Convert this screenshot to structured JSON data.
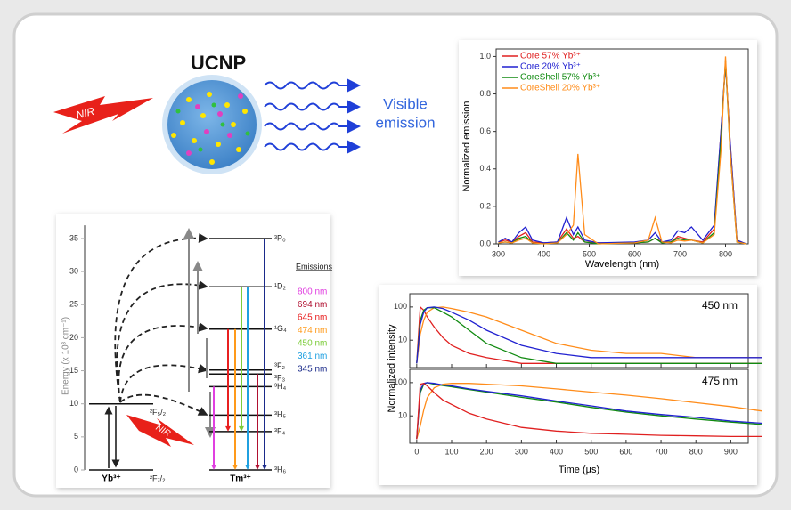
{
  "illustration": {
    "title": "UCNP",
    "excitation": "NIR",
    "emission_lines": [
      "Visible",
      "emission"
    ]
  },
  "chart_data": [
    {
      "type": "levels",
      "ylabel": "Energy (x 10³ cm⁻¹)",
      "ylim": [
        0,
        37
      ],
      "yticks": [
        0,
        5,
        10,
        15,
        20,
        25,
        30,
        35
      ],
      "excitation": "NIR",
      "yb": {
        "label": "Yb³⁺",
        "levels": [
          {
            "label": "²F₅/₂",
            "energy": 10
          },
          {
            "label": "²F₇/₂",
            "energy": 0
          }
        ]
      },
      "tm": {
        "label": "Tm³⁺",
        "levels": [
          {
            "label": "³P₀",
            "energy": 35
          },
          {
            "label": "¹D₂",
            "energy": 27.7
          },
          {
            "label": "¹G₄",
            "energy": 21.3
          },
          {
            "label": "³F₂",
            "energy": 15.1
          },
          {
            "label": "³F₃",
            "energy": 14.5
          },
          {
            "label": "³H₄",
            "energy": 12.6
          },
          {
            "label": "³H₅",
            "energy": 8.3
          },
          {
            "label": "³F₄",
            "energy": 5.8
          },
          {
            "label": "³H₆",
            "energy": 0
          }
        ]
      },
      "legend_title": "Emissions",
      "emissions": [
        {
          "label": "800 nm",
          "color": "#e040e0"
        },
        {
          "label": "694 nm",
          "color": "#b01030"
        },
        {
          "label": "645 nm",
          "color": "#e82020"
        },
        {
          "label": "474 nm",
          "color": "#ff9a1a"
        },
        {
          "label": "450 nm",
          "color": "#7ccc3a"
        },
        {
          "label": "361 nm",
          "color": "#20a0e0"
        },
        {
          "label": "345 nm",
          "color": "#1a2a8a"
        }
      ]
    },
    {
      "type": "line",
      "xlabel": "Wavelength (nm)",
      "ylabel": "Normalized emission",
      "xlim": [
        295,
        850
      ],
      "ylim": [
        0,
        1.04
      ],
      "xticks": [
        300,
        400,
        500,
        600,
        700,
        800
      ],
      "yticks": [
        {
          "value": 0,
          "label": "0.0"
        },
        0.2,
        0.4,
        0.6,
        0.8,
        {
          "value": 1,
          "label": "1.0"
        }
      ],
      "legend": "upper left",
      "x": [
        300,
        315,
        330,
        345,
        360,
        375,
        400,
        430,
        450,
        465,
        475,
        490,
        520,
        600,
        630,
        645,
        660,
        680,
        695,
        710,
        725,
        750,
        775,
        790,
        800,
        810,
        825,
        845
      ],
      "series": [
        {
          "name": "Core 57% Yb³⁺",
          "color": "#e02020",
          "values": [
            0.01,
            0.02,
            0.01,
            0.04,
            0.06,
            0.01,
            0.005,
            0.01,
            0.08,
            0.03,
            0.04,
            0.01,
            0.005,
            0.005,
            0.01,
            0.03,
            0.01,
            0.01,
            0.04,
            0.03,
            0.02,
            0.01,
            0.08,
            0.6,
            0.97,
            0.55,
            0.02,
            0
          ]
        },
        {
          "name": "Core 20% Yb³⁺",
          "color": "#2020d0",
          "values": [
            0.01,
            0.03,
            0.01,
            0.06,
            0.09,
            0.02,
            0.005,
            0.01,
            0.14,
            0.05,
            0.09,
            0.02,
            0.005,
            0.01,
            0.02,
            0.06,
            0.01,
            0.02,
            0.07,
            0.06,
            0.09,
            0.02,
            0.1,
            0.6,
            0.96,
            0.55,
            0.02,
            0
          ]
        },
        {
          "name": "CoreShell 57% Yb³⁺",
          "color": "#108a10",
          "values": [
            0.005,
            0.01,
            0.005,
            0.03,
            0.04,
            0.005,
            0,
            0.005,
            0.06,
            0.02,
            0.06,
            0.01,
            0,
            0.005,
            0.01,
            0.03,
            0.005,
            0.01,
            0.03,
            0.02,
            0.02,
            0.005,
            0.06,
            0.55,
            0.98,
            0.5,
            0.01,
            0
          ]
        },
        {
          "name": "CoreShell 20% Yb³⁺",
          "color": "#ff8c1a",
          "values": [
            0.005,
            0.01,
            0.005,
            0.02,
            0.03,
            0.005,
            0,
            0.005,
            0.05,
            0.1,
            0.48,
            0.05,
            0,
            0.005,
            0.02,
            0.14,
            0.01,
            0.005,
            0.02,
            0.015,
            0.02,
            0.005,
            0.05,
            0.5,
            1,
            0.5,
            0.01,
            0
          ]
        }
      ]
    },
    {
      "type": "decay",
      "xlabel": "Time (µs)",
      "ylabel": "Normalized intensity",
      "xlim": [
        -20,
        950
      ],
      "ylim": [
        1.5,
        250
      ],
      "log_y": true,
      "xticks": [
        0,
        100,
        200,
        300,
        400,
        500,
        600,
        700,
        800,
        900
      ],
      "yticks": [
        10,
        100
      ],
      "x": [
        0,
        10,
        20,
        30,
        50,
        75,
        100,
        150,
        200,
        300,
        400,
        500,
        600,
        700,
        800,
        900,
        990
      ],
      "panels": [
        {
          "label": "450 nm",
          "series": [
            {
              "color": "#e02020",
              "values": [
                2,
                100,
                80,
                50,
                25,
                12,
                7,
                4,
                3,
                2,
                2,
                2,
                2,
                2,
                2,
                2,
                2
              ]
            },
            {
              "color": "#ff8c1a",
              "values": [
                2,
                15,
                40,
                70,
                95,
                100,
                90,
                70,
                50,
                20,
                8,
                5,
                4,
                4,
                3,
                3,
                3
              ]
            },
            {
              "color": "#108a10",
              "values": [
                2,
                40,
                80,
                95,
                95,
                70,
                50,
                20,
                8,
                3,
                2,
                2,
                2,
                2,
                2,
                2,
                2
              ]
            },
            {
              "color": "#2020d0",
              "values": [
                2,
                30,
                70,
                95,
                100,
                90,
                70,
                40,
                20,
                7,
                4,
                3,
                3,
                3,
                3,
                3,
                3
              ]
            }
          ]
        },
        {
          "label": "475 nm",
          "series": [
            {
              "color": "#ff8c1a",
              "values": [
                2,
                5,
                15,
                35,
                70,
                90,
                95,
                95,
                90,
                80,
                65,
                52,
                42,
                33,
                25,
                19,
                14
              ]
            },
            {
              "color": "#108a10",
              "values": [
                2,
                50,
                90,
                100,
                90,
                82,
                75,
                62,
                52,
                36,
                26,
                18,
                13,
                10,
                8,
                6.5,
                5.5
              ]
            },
            {
              "color": "#2020d0",
              "values": [
                2,
                60,
                95,
                100,
                95,
                85,
                80,
                65,
                55,
                40,
                28,
                20,
                14,
                11,
                9,
                7,
                6
              ]
            },
            {
              "color": "#e02020",
              "values": [
                2,
                90,
                95,
                80,
                50,
                30,
                22,
                12,
                8,
                4.5,
                3.5,
                3,
                2.8,
                2.6,
                2.5,
                2.4,
                2.4
              ]
            }
          ]
        }
      ]
    }
  ]
}
